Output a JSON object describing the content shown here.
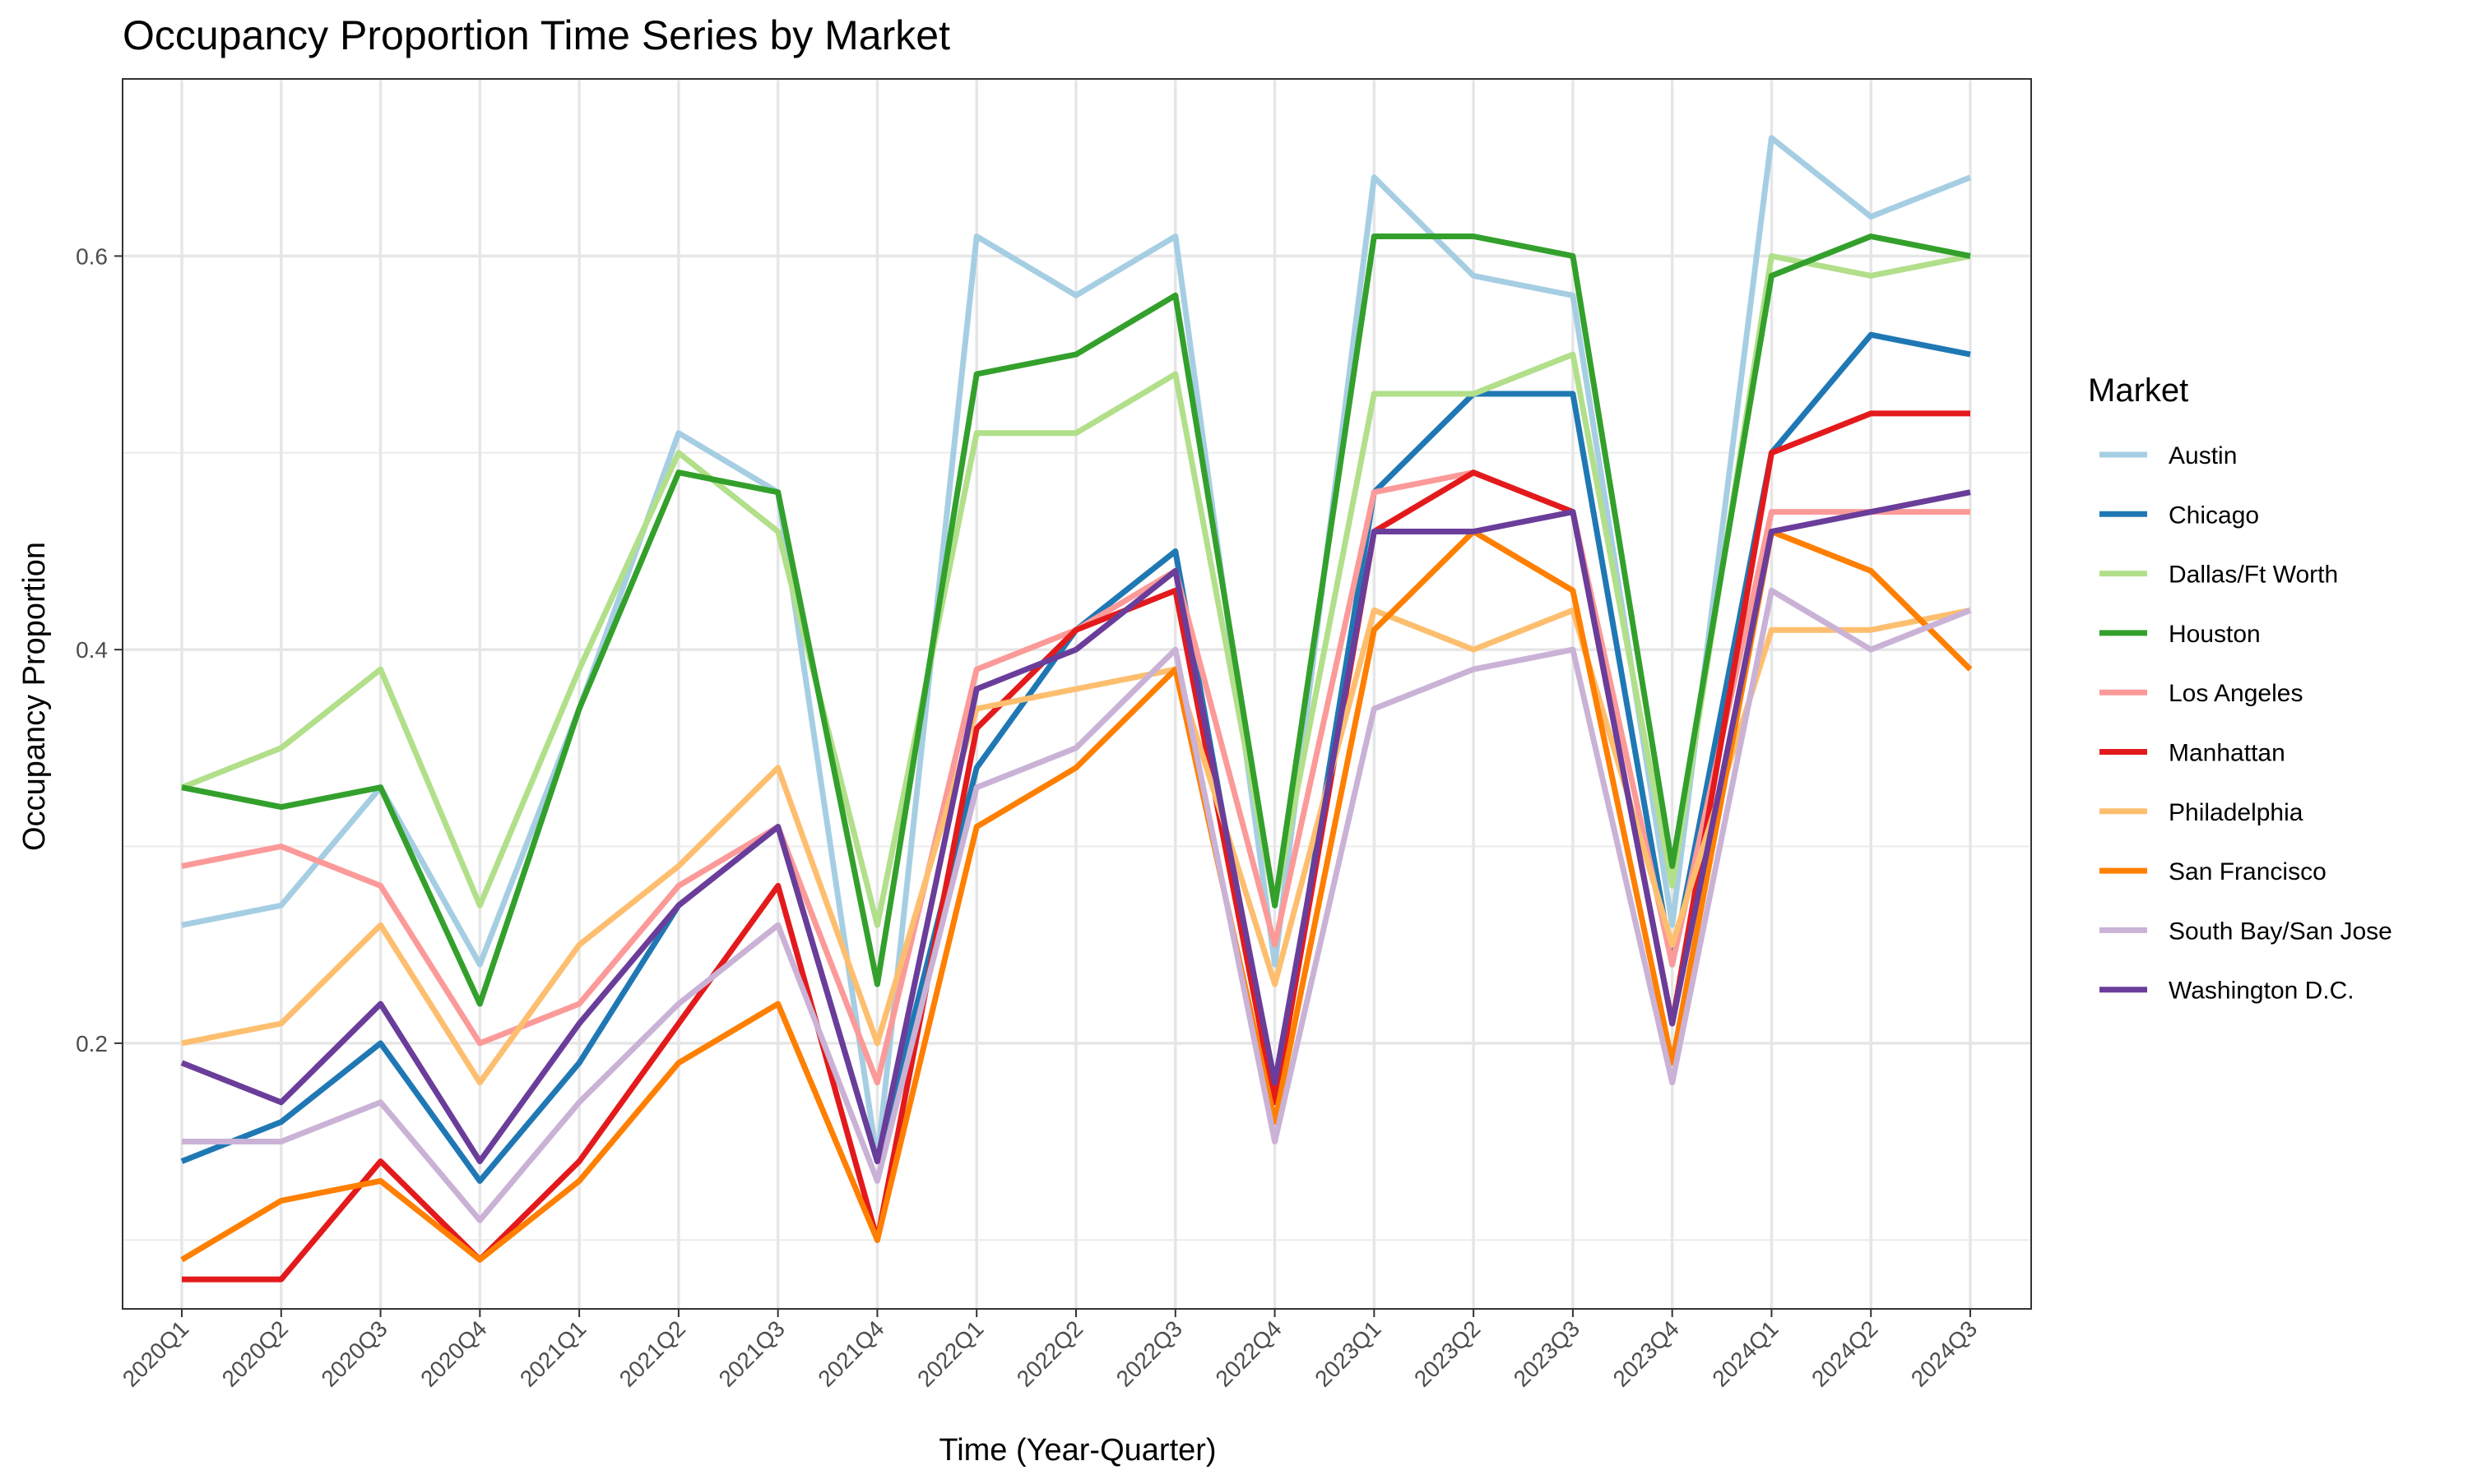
{
  "chart_data": {
    "type": "line",
    "title": "Occupancy Proportion Time Series by Market",
    "xlabel": "Time (Year-Quarter)",
    "ylabel": "Occupancy Proportion",
    "ylim": [
      0.065,
      0.69
    ],
    "y_ticks": [
      0.2,
      0.4,
      0.6
    ],
    "y_tick_labels": [
      "0.2",
      "0.4",
      "0.6"
    ],
    "grid": true,
    "legend_title": "Market",
    "legend_position": "right",
    "categories": [
      "2020Q1",
      "2020Q2",
      "2020Q3",
      "2020Q4",
      "2021Q1",
      "2021Q2",
      "2021Q3",
      "2021Q4",
      "2022Q1",
      "2022Q2",
      "2022Q3",
      "2022Q4",
      "2023Q1",
      "2023Q2",
      "2023Q3",
      "2023Q4",
      "2024Q1",
      "2024Q2",
      "2024Q3"
    ],
    "series": [
      {
        "name": "Austin",
        "color": "#a6cee3",
        "values": [
          0.26,
          0.27,
          0.33,
          0.24,
          0.37,
          0.51,
          0.48,
          0.14,
          0.61,
          0.58,
          0.61,
          0.24,
          0.64,
          0.59,
          0.58,
          0.26,
          0.66,
          0.62,
          0.64
        ]
      },
      {
        "name": "Chicago",
        "color": "#1f78b4",
        "values": [
          0.14,
          0.16,
          0.2,
          0.13,
          0.19,
          0.27,
          0.31,
          0.14,
          0.34,
          0.41,
          0.45,
          0.17,
          0.48,
          0.53,
          0.53,
          0.24,
          0.5,
          0.56,
          0.55
        ]
      },
      {
        "name": "Dallas/Ft Worth",
        "color": "#b2df8a",
        "values": [
          0.33,
          0.35,
          0.39,
          0.27,
          0.39,
          0.5,
          0.46,
          0.26,
          0.51,
          0.51,
          0.54,
          0.27,
          0.53,
          0.53,
          0.55,
          0.28,
          0.6,
          0.59,
          0.6
        ]
      },
      {
        "name": "Houston",
        "color": "#33a02c",
        "values": [
          0.33,
          0.32,
          0.33,
          0.22,
          0.37,
          0.49,
          0.48,
          0.23,
          0.54,
          0.55,
          0.58,
          0.27,
          0.61,
          0.61,
          0.6,
          0.29,
          0.59,
          0.61,
          0.6
        ]
      },
      {
        "name": "Los Angeles",
        "color": "#fb9a99",
        "values": [
          0.29,
          0.3,
          0.28,
          0.2,
          0.22,
          0.28,
          0.31,
          0.18,
          0.39,
          0.41,
          0.44,
          0.25,
          0.48,
          0.49,
          0.47,
          0.24,
          0.47,
          0.47,
          0.47
        ]
      },
      {
        "name": "Manhattan",
        "color": "#e31a1c",
        "values": [
          0.08,
          0.08,
          0.14,
          0.09,
          0.14,
          0.21,
          0.28,
          0.1,
          0.36,
          0.41,
          0.43,
          0.17,
          0.46,
          0.49,
          0.47,
          0.21,
          0.5,
          0.52,
          0.52
        ]
      },
      {
        "name": "Philadelphia",
        "color": "#fdbf6f",
        "values": [
          0.2,
          0.21,
          0.26,
          0.18,
          0.25,
          0.29,
          0.34,
          0.2,
          0.37,
          0.38,
          0.39,
          0.23,
          0.42,
          0.4,
          0.42,
          0.25,
          0.41,
          0.41,
          0.42
        ]
      },
      {
        "name": "San Francisco",
        "color": "#ff7f00",
        "values": [
          0.09,
          0.12,
          0.13,
          0.09,
          0.13,
          0.19,
          0.22,
          0.1,
          0.31,
          0.34,
          0.39,
          0.16,
          0.41,
          0.46,
          0.43,
          0.19,
          0.46,
          0.44,
          0.39
        ]
      },
      {
        "name": "South Bay/San Jose",
        "color": "#cab2d6",
        "values": [
          0.15,
          0.15,
          0.17,
          0.11,
          0.17,
          0.22,
          0.26,
          0.13,
          0.33,
          0.35,
          0.4,
          0.15,
          0.37,
          0.39,
          0.4,
          0.18,
          0.43,
          0.4,
          0.42
        ]
      },
      {
        "name": "Washington D.C.",
        "color": "#6a3d9a",
        "values": [
          0.19,
          0.17,
          0.22,
          0.14,
          0.21,
          0.27,
          0.31,
          0.14,
          0.38,
          0.4,
          0.44,
          0.18,
          0.46,
          0.46,
          0.47,
          0.21,
          0.46,
          0.47,
          0.48
        ]
      }
    ]
  }
}
